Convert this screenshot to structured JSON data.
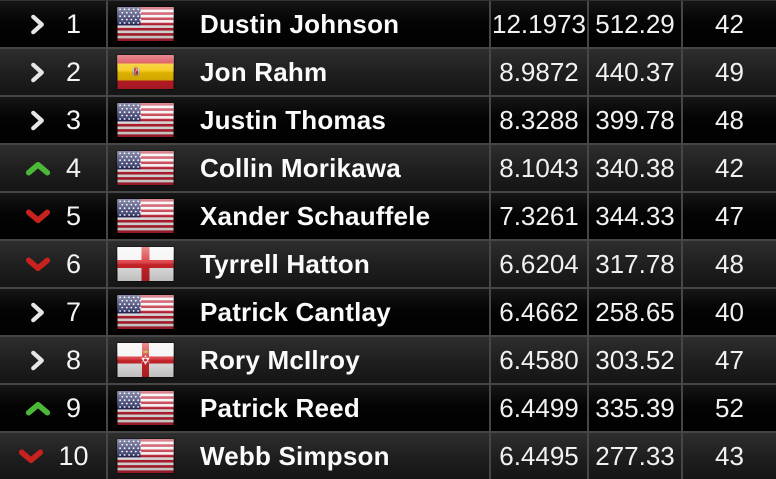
{
  "table": {
    "rows": [
      {
        "movement": "same",
        "rank": "1",
        "country": "United States",
        "flag": "usa",
        "name": "Dustin Johnson",
        "average": "12.1973",
        "total": "512.29",
        "events": "42"
      },
      {
        "movement": "same",
        "rank": "2",
        "country": "Spain",
        "flag": "esp",
        "name": "Jon Rahm",
        "average": "8.9872",
        "total": "440.37",
        "events": "49"
      },
      {
        "movement": "same",
        "rank": "3",
        "country": "United States",
        "flag": "usa",
        "name": "Justin Thomas",
        "average": "8.3288",
        "total": "399.78",
        "events": "48"
      },
      {
        "movement": "up",
        "rank": "4",
        "country": "United States",
        "flag": "usa",
        "name": "Collin Morikawa",
        "average": "8.1043",
        "total": "340.38",
        "events": "42"
      },
      {
        "movement": "down",
        "rank": "5",
        "country": "United States",
        "flag": "usa",
        "name": "Xander Schauffele",
        "average": "7.3261",
        "total": "344.33",
        "events": "47"
      },
      {
        "movement": "down",
        "rank": "6",
        "country": "England",
        "flag": "eng",
        "name": "Tyrrell Hatton",
        "average": "6.6204",
        "total": "317.78",
        "events": "48"
      },
      {
        "movement": "same",
        "rank": "7",
        "country": "United States",
        "flag": "usa",
        "name": "Patrick Cantlay",
        "average": "6.4662",
        "total": "258.65",
        "events": "40"
      },
      {
        "movement": "same",
        "rank": "8",
        "country": "Northern Ireland",
        "flag": "nir",
        "name": "Rory McIlroy",
        "average": "6.4580",
        "total": "303.52",
        "events": "47"
      },
      {
        "movement": "up",
        "rank": "9",
        "country": "United States",
        "flag": "usa",
        "name": "Patrick Reed",
        "average": "6.4499",
        "total": "335.39",
        "events": "52"
      },
      {
        "movement": "down",
        "rank": "10",
        "country": "United States",
        "flag": "usa",
        "name": "Webb Simpson",
        "average": "6.4495",
        "total": "277.33",
        "events": "43"
      }
    ]
  },
  "colors": {
    "movement_up": "#4cb838",
    "movement_down": "#c8221e",
    "movement_same": "#e6e6e6",
    "divider": "#464646",
    "row_dark": "#030303",
    "row_light": "#262626",
    "text": "#f4f4f4"
  }
}
